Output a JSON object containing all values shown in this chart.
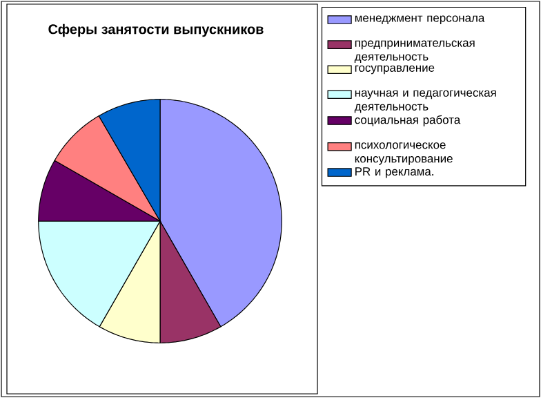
{
  "chart_data": {
    "type": "pie",
    "title": "Сферы занятости выпускников",
    "categories": [
      "менеджмент персонала",
      "предпринимательская деятельность",
      "госуправление",
      "научная и педагогическая деятельность",
      "социальная работа",
      "психологическое консультирование",
      "PR и реклама."
    ],
    "values": [
      41.7,
      8.3,
      8.3,
      16.7,
      8.3,
      8.3,
      8.4
    ],
    "colors": [
      "#9999ff",
      "#993366",
      "#ffffcc",
      "#ccffff",
      "#660066",
      "#ff8080",
      "#0066cc"
    ],
    "legend": "right"
  }
}
